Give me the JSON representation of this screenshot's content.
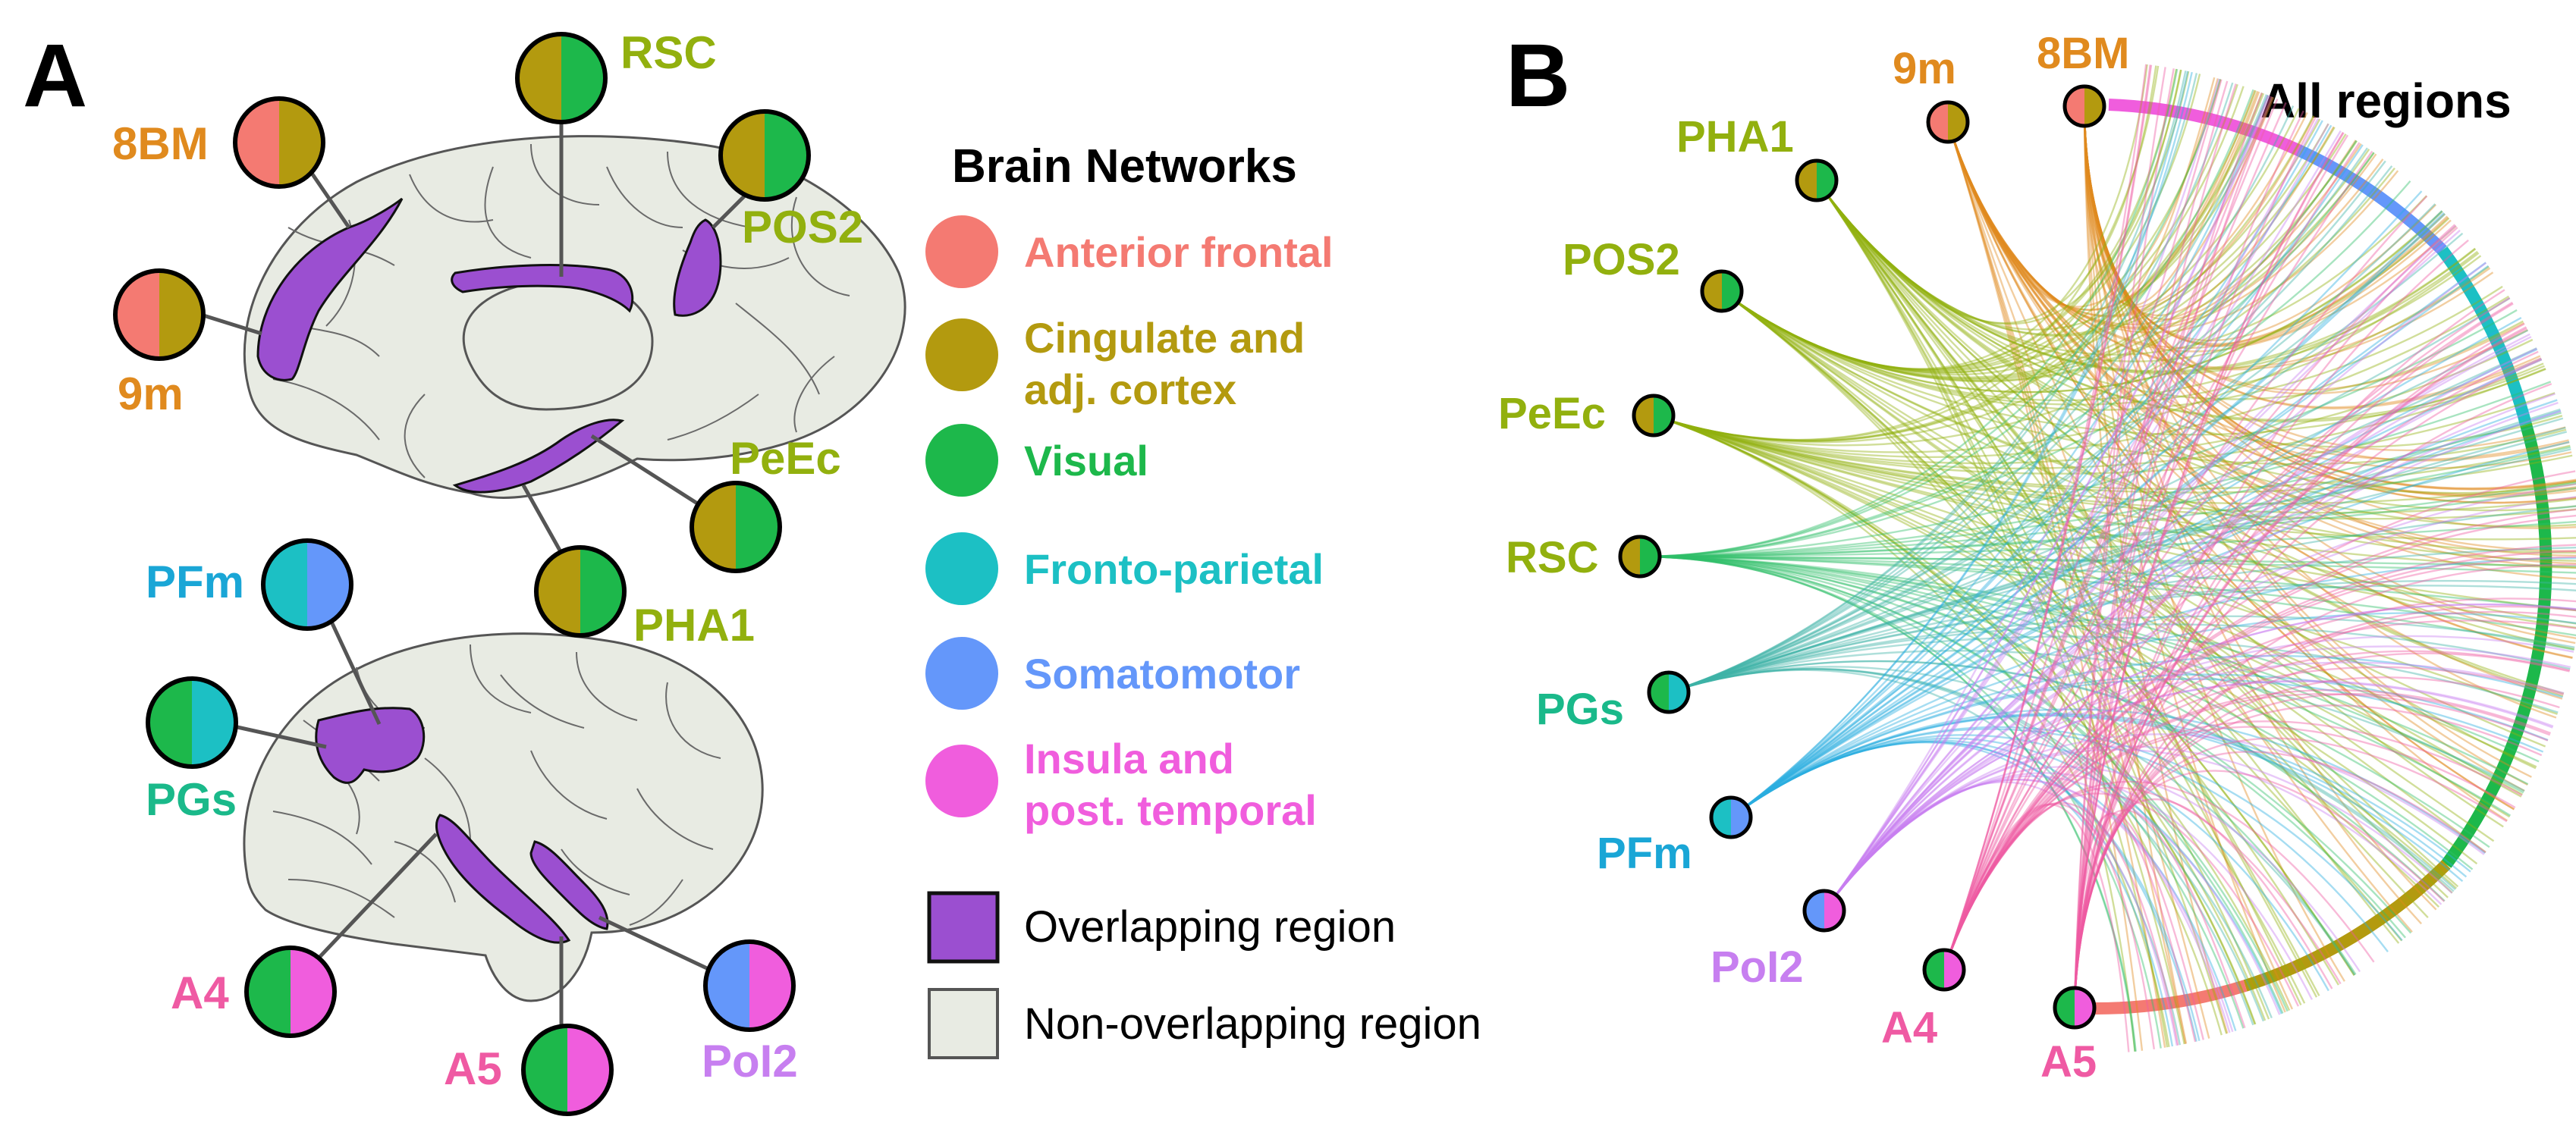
{
  "colors": {
    "anterior_frontal": "#f47a72",
    "cingulate": "#b39a0f",
    "visual": "#1db84b",
    "fronto_parietal": "#1cc0c4",
    "somatomotor": "#6497fa",
    "insula": "#f05ddd",
    "overlap": "#9b4fd0",
    "nonoverlap": "#e8ebe3",
    "label_orange": "#e08a1e",
    "label_olive": "#92b00e",
    "label_cyan": "#1aa6d6",
    "label_teal": "#1ab98a",
    "label_pink": "#ef5aa3",
    "label_lilac": "#c77ff0"
  },
  "panel_a": {
    "letter": "A",
    "regions": {
      "rsc": "RSC",
      "bm8": "8BM",
      "pos2": "POS2",
      "m9": "9m",
      "peec": "PeEc",
      "pha1": "PHA1",
      "pfm": "PFm",
      "pgs": "PGs",
      "a4": "A4",
      "a5": "A5",
      "pol2": "PoI2"
    }
  },
  "legend": {
    "title": "Brain Networks",
    "items": [
      {
        "lines": [
          "Anterior frontal"
        ],
        "color": "#f47a72"
      },
      {
        "lines": [
          "Cingulate and",
          "adj. cortex"
        ],
        "color": "#b39a0f"
      },
      {
        "lines": [
          "Visual"
        ],
        "color": "#1db84b"
      },
      {
        "lines": [
          "Fronto-parietal"
        ],
        "color": "#1cc0c4"
      },
      {
        "lines": [
          "Somatomotor"
        ],
        "color": "#6497fa"
      },
      {
        "lines": [
          "Insula and",
          "post. temporal"
        ],
        "color": "#f05ddd"
      }
    ],
    "overlap_label": "Overlapping region",
    "nonoverlap_label": "Non-overlapping region"
  },
  "panel_b": {
    "letter": "B",
    "all_regions": "All regions",
    "nodes": [
      "9m",
      "8BM",
      "PHA1",
      "POS2",
      "PeEc",
      "RSC",
      "PGs",
      "PFm",
      "PoI2",
      "A4",
      "A5"
    ]
  }
}
